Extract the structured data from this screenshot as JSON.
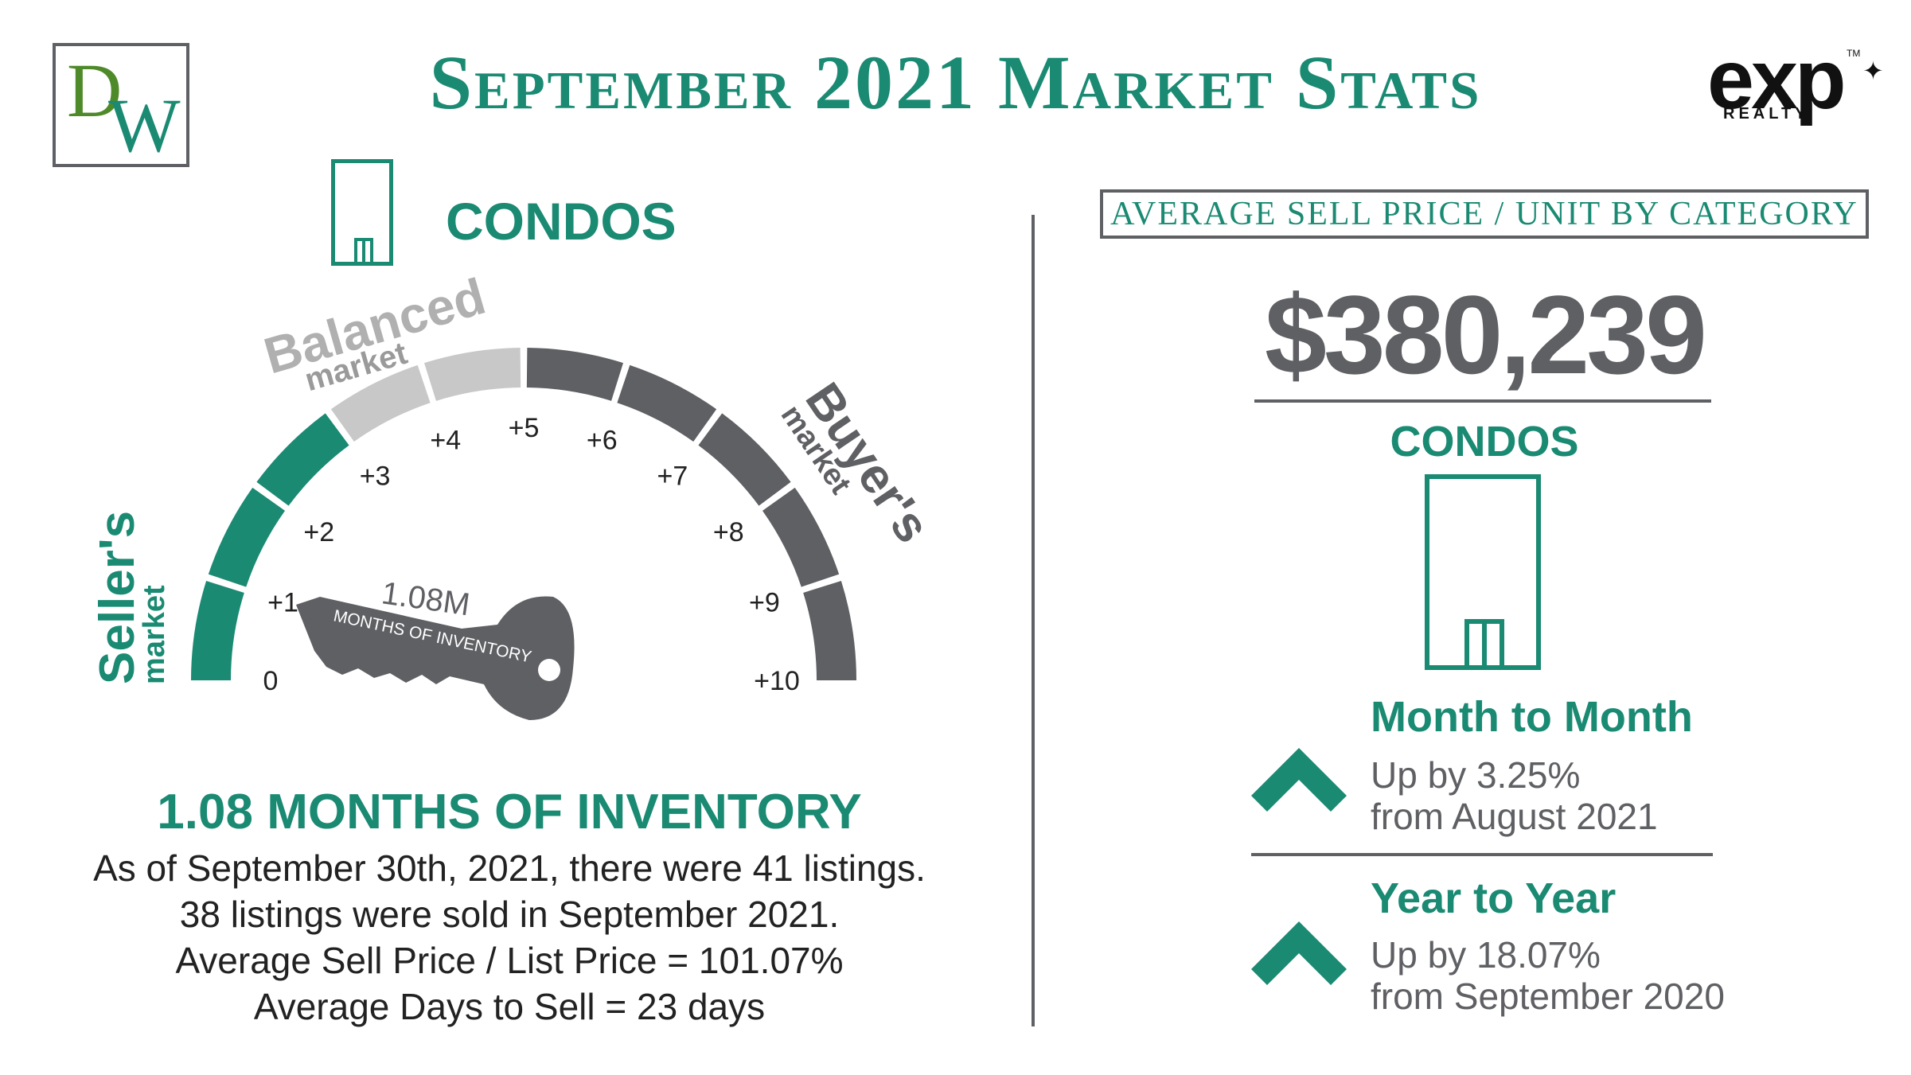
{
  "header": {
    "logo_left": "DW",
    "title": "September 2021 Market Stats",
    "logo_right": {
      "word": "exp",
      "sub": "REALTY",
      "tm": "TM"
    }
  },
  "left": {
    "category": "CONDOS",
    "gauge": {
      "zones": {
        "balanced": [
          "Balanced",
          "market"
        ],
        "buyers": [
          "Buyer's",
          "market"
        ],
        "sellers": [
          "Seller's",
          "market"
        ]
      },
      "ticks": [
        "0",
        "+1",
        "+2",
        "+3",
        "+4",
        "+5",
        "+6",
        "+7",
        "+8",
        "+9",
        "+10"
      ],
      "value": 1.08,
      "key_value": "1.08M",
      "key_label": "MONTHS OF INVENTORY",
      "colors": {
        "seller": "#1a8a73",
        "balanced": "#c8c8c8",
        "buyer": "#5f6064"
      }
    },
    "inventory_title": "1.08 MONTHS OF INVENTORY",
    "lines": [
      "As of September 30th, 2021, there were 41 listings.",
      "38 listings were sold in September 2021.",
      "Average Sell Price / List Price = 101.07%",
      "Average Days to Sell = 23 days"
    ]
  },
  "right": {
    "box_title": "Average Sell Price / Unit by Category",
    "price": "$380,239",
    "category": "CONDOS",
    "month": {
      "title": "Month to Month",
      "line1": "Up by 3.25%",
      "line2": "from August 2021",
      "direction": "up"
    },
    "year": {
      "title": "Year to Year",
      "line1": "Up by 18.07%",
      "line2": "from September 2020",
      "direction": "up"
    }
  }
}
